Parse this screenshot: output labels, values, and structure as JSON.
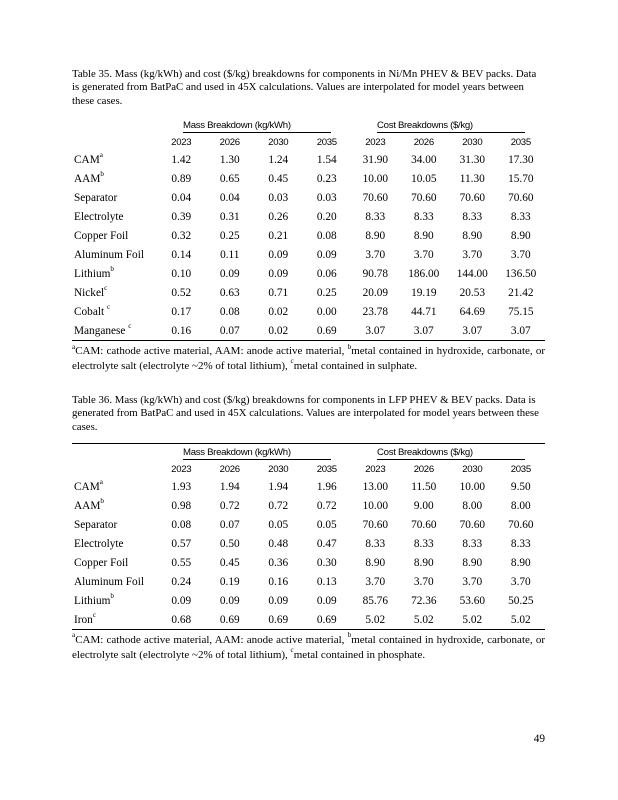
{
  "page": {
    "number": "49"
  },
  "tables": [
    {
      "caption": "Table 35. Mass (kg/kWh) and cost ($/kg) breakdowns for components in Ni/Mn PHEV & BEV packs. Data is generated from BatPaC and used in 45X calculations. Values are interpolated for model years between these cases.",
      "group_headers": [
        "Mass Breakdown (kg/kWh)",
        "Cost Breakdowns ($/kg)"
      ],
      "years": [
        "2023",
        "2026",
        "2030",
        "2035",
        "2023",
        "2026",
        "2030",
        "2035"
      ],
      "rows": [
        {
          "label": "CAM",
          "sup": "a",
          "values": [
            "1.42",
            "1.30",
            "1.24",
            "1.54",
            "31.90",
            "34.00",
            "31.30",
            "17.30"
          ]
        },
        {
          "label": "AAM",
          "sup": "b",
          "values": [
            "0.89",
            "0.65",
            "0.45",
            "0.23",
            "10.00",
            "10.05",
            "11.30",
            "15.70"
          ]
        },
        {
          "label": "Separator",
          "sup": "",
          "values": [
            "0.04",
            "0.04",
            "0.03",
            "0.03",
            "70.60",
            "70.60",
            "70.60",
            "70.60"
          ]
        },
        {
          "label": "Electrolyte",
          "sup": "",
          "values": [
            "0.39",
            "0.31",
            "0.26",
            "0.20",
            "8.33",
            "8.33",
            "8.33",
            "8.33"
          ]
        },
        {
          "label": "Copper Foil",
          "sup": "",
          "values": [
            "0.32",
            "0.25",
            "0.21",
            "0.08",
            "8.90",
            "8.90",
            "8.90",
            "8.90"
          ]
        },
        {
          "label": "Aluminum Foil",
          "sup": "",
          "values": [
            "0.14",
            "0.11",
            "0.09",
            "0.09",
            "3.70",
            "3.70",
            "3.70",
            "3.70"
          ]
        },
        {
          "label": "Lithium",
          "sup": "b",
          "values": [
            "0.10",
            "0.09",
            "0.09",
            "0.06",
            "90.78",
            "186.00",
            "144.00",
            "136.50"
          ]
        },
        {
          "label": "Nickel",
          "sup": "c",
          "values": [
            "0.52",
            "0.63",
            "0.71",
            "0.25",
            "20.09",
            "19.19",
            "20.53",
            "21.42"
          ]
        },
        {
          "label": "Cobalt ",
          "sup": "c",
          "values": [
            "0.17",
            "0.08",
            "0.02",
            "0.00",
            "23.78",
            "44.71",
            "64.69",
            "75.15"
          ]
        },
        {
          "label": "Manganese ",
          "sup": "c",
          "values": [
            "0.16",
            "0.07",
            "0.02",
            "0.69",
            "3.07",
            "3.07",
            "3.07",
            "3.07"
          ]
        }
      ],
      "footnote_parts": [
        {
          "sup": "a"
        },
        {
          "text": "CAM: cathode active material, AAM: anode active material, "
        },
        {
          "sup": "b"
        },
        {
          "text": "metal contained in hydroxide, carbonate, or electrolyte salt (electrolyte ~2% of total lithium), "
        },
        {
          "sup": "c"
        },
        {
          "text": "metal contained in sulphate."
        }
      ]
    },
    {
      "caption": "Table 36. Mass (kg/kWh) and cost ($/kg) breakdowns for components in LFP PHEV & BEV packs. Data is generated from BatPaC and used in 45X calculations. Values are interpolated for model years between these cases.",
      "group_headers": [
        "Mass Breakdown (kg/kWh)",
        "Cost Breakdowns ($/kg)"
      ],
      "years": [
        "2023",
        "2026",
        "2030",
        "2035",
        "2023",
        "2026",
        "2030",
        "2035"
      ],
      "rows": [
        {
          "label": "CAM",
          "sup": "a",
          "values": [
            "1.93",
            "1.94",
            "1.94",
            "1.96",
            "13.00",
            "11.50",
            "10.00",
            "9.50"
          ]
        },
        {
          "label": "AAM",
          "sup": "b",
          "values": [
            "0.98",
            "0.72",
            "0.72",
            "0.72",
            "10.00",
            "9.00",
            "8.00",
            "8.00"
          ]
        },
        {
          "label": "Separator",
          "sup": "",
          "values": [
            "0.08",
            "0.07",
            "0.05",
            "0.05",
            "70.60",
            "70.60",
            "70.60",
            "70.60"
          ]
        },
        {
          "label": "Electrolyte",
          "sup": "",
          "values": [
            "0.57",
            "0.50",
            "0.48",
            "0.47",
            "8.33",
            "8.33",
            "8.33",
            "8.33"
          ]
        },
        {
          "label": "Copper Foil",
          "sup": "",
          "values": [
            "0.55",
            "0.45",
            "0.36",
            "0.30",
            "8.90",
            "8.90",
            "8.90",
            "8.90"
          ]
        },
        {
          "label": "Aluminum Foil",
          "sup": "",
          "values": [
            "0.24",
            "0.19",
            "0.16",
            "0.13",
            "3.70",
            "3.70",
            "3.70",
            "3.70"
          ]
        },
        {
          "label": "Lithium",
          "sup": "b",
          "values": [
            "0.09",
            "0.09",
            "0.09",
            "0.09",
            "85.76",
            "72.36",
            "53.60",
            "50.25"
          ]
        },
        {
          "label": "Iron",
          "sup": "c",
          "values": [
            "0.68",
            "0.69",
            "0.69",
            "0.69",
            "5.02",
            "5.02",
            "5.02",
            "5.02"
          ]
        }
      ],
      "footnote_parts": [
        {
          "sup": "a"
        },
        {
          "text": "CAM: cathode active material, AAM: anode active material, "
        },
        {
          "sup": "b"
        },
        {
          "text": "metal contained in hydroxide, carbonate, or electrolyte salt (electrolyte ~2% of total lithium), "
        },
        {
          "sup": "c"
        },
        {
          "text": "metal contained in phosphate."
        }
      ]
    }
  ]
}
